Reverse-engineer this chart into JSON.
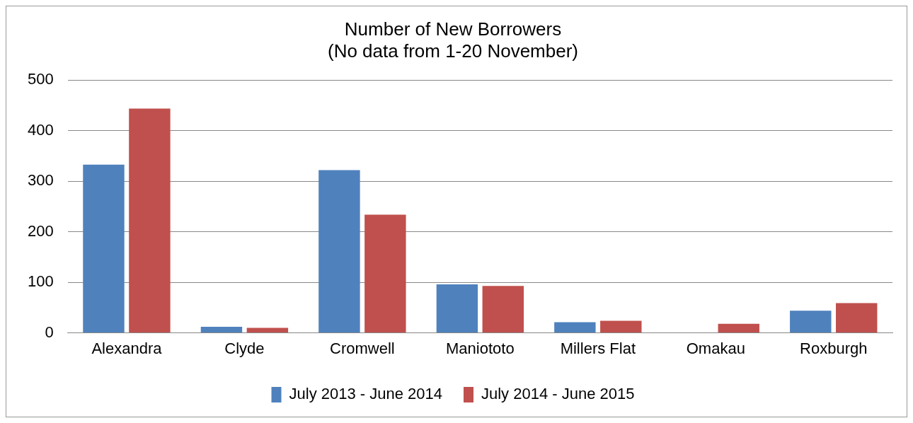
{
  "chart_data": {
    "type": "bar",
    "title": [
      "Number of New Borrowers",
      "(No data from 1-20 November)"
    ],
    "categories": [
      "Alexandra",
      "Clyde",
      "Cromwell",
      "Maniototo",
      "Millers Flat",
      "Omakau",
      "Roxburgh"
    ],
    "series": [
      {
        "name": "July 2013 - June 2014",
        "color": "#4f81bd",
        "values": [
          333,
          12,
          322,
          96,
          21,
          0,
          44
        ]
      },
      {
        "name": "July 2014 - June 2015",
        "color": "#c0504d",
        "values": [
          444,
          10,
          234,
          93,
          24,
          18,
          59
        ]
      }
    ],
    "ylim": [
      0,
      500
    ],
    "yticks": [
      0,
      100,
      200,
      300,
      400,
      500
    ],
    "grid": "y",
    "legend": "bottom"
  }
}
